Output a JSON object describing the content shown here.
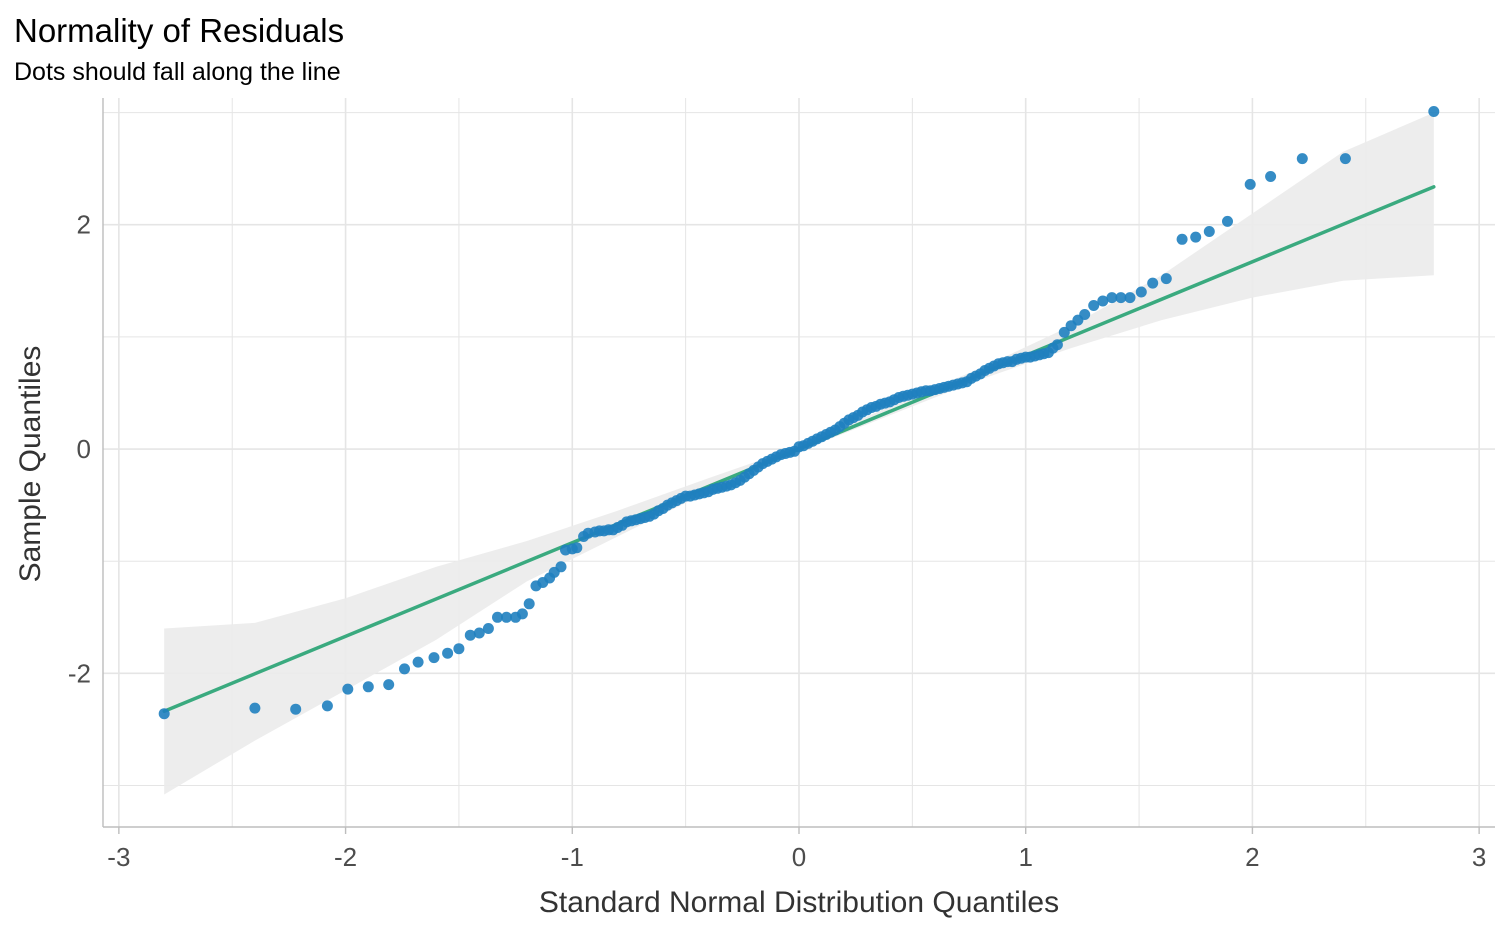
{
  "chart_data": {
    "type": "scatter",
    "title": "Normality of Residuals",
    "subtitle": "Dots should fall along the line",
    "xlabel": "Standard Normal Distribution Quantiles",
    "ylabel": "Sample Quantiles",
    "xlim": [
      -3.07,
      3.07
    ],
    "ylim": [
      -3.37,
      3.13
    ],
    "x_ticks": [
      -3,
      -2,
      -1,
      0,
      1,
      2,
      3
    ],
    "x_tick_labels": [
      "-3",
      "-2",
      "-1",
      "0",
      "1",
      "2",
      "3"
    ],
    "y_ticks": [
      -2,
      0,
      2
    ],
    "y_tick_labels": [
      "-2",
      "0",
      "2"
    ],
    "grid": true,
    "colors": {
      "points": "#1f7fbf",
      "line": "#3aaa7f",
      "band": "#ebebeb",
      "grid": "#e5e5e5",
      "axis": "#bdbdbd"
    },
    "reference_line": {
      "slope": 0.835,
      "intercept": 0.0,
      "x_range": [
        -2.8,
        2.8
      ]
    },
    "confidence_band": {
      "x": [
        -2.8,
        -2.4,
        -2.0,
        -1.6,
        -1.2,
        -0.8,
        -0.4,
        0.0,
        0.4,
        0.8,
        1.2,
        1.6,
        2.0,
        2.4,
        2.8
      ],
      "lower": [
        -3.08,
        -2.6,
        -2.15,
        -1.7,
        -1.18,
        -0.78,
        -0.38,
        -0.02,
        0.3,
        0.62,
        0.9,
        1.15,
        1.35,
        1.5,
        1.55
      ],
      "upper": [
        -1.6,
        -1.55,
        -1.33,
        -1.05,
        -0.82,
        -0.55,
        -0.26,
        0.02,
        0.38,
        0.72,
        1.1,
        1.55,
        2.1,
        2.65,
        3.0
      ]
    },
    "series": [
      {
        "points": [
          [
            -2.8,
            -2.36
          ],
          [
            -2.4,
            -2.31
          ],
          [
            -2.22,
            -2.32
          ],
          [
            -2.08,
            -2.29
          ],
          [
            -1.99,
            -2.14
          ],
          [
            -1.9,
            -2.12
          ],
          [
            -1.81,
            -2.1
          ],
          [
            -1.74,
            -1.96
          ],
          [
            -1.68,
            -1.9
          ],
          [
            -1.61,
            -1.86
          ],
          [
            -1.55,
            -1.82
          ],
          [
            -1.5,
            -1.78
          ],
          [
            -1.45,
            -1.66
          ],
          [
            -1.41,
            -1.64
          ],
          [
            -1.37,
            -1.6
          ],
          [
            -1.33,
            -1.5
          ],
          [
            -1.29,
            -1.5
          ],
          [
            -1.25,
            -1.5
          ],
          [
            -1.22,
            -1.47
          ],
          [
            -1.19,
            -1.38
          ],
          [
            -1.16,
            -1.22
          ],
          [
            -1.13,
            -1.19
          ],
          [
            -1.1,
            -1.15
          ],
          [
            -1.08,
            -1.1
          ],
          [
            -1.05,
            -1.05
          ],
          [
            -1.03,
            -0.9
          ],
          [
            -1.0,
            -0.89
          ],
          [
            -0.98,
            -0.88
          ],
          [
            -0.95,
            -0.78
          ],
          [
            -0.93,
            -0.75
          ],
          [
            -0.9,
            -0.74
          ],
          [
            -0.88,
            -0.73
          ],
          [
            -0.86,
            -0.73
          ],
          [
            -0.84,
            -0.72
          ],
          [
            -0.82,
            -0.72
          ],
          [
            -0.8,
            -0.7
          ],
          [
            -0.78,
            -0.68
          ],
          [
            -0.76,
            -0.65
          ],
          [
            -0.74,
            -0.64
          ],
          [
            -0.72,
            -0.63
          ],
          [
            -0.7,
            -0.62
          ],
          [
            -0.68,
            -0.61
          ],
          [
            -0.66,
            -0.6
          ],
          [
            -0.64,
            -0.58
          ],
          [
            -0.62,
            -0.55
          ],
          [
            -0.6,
            -0.53
          ],
          [
            -0.58,
            -0.5
          ],
          [
            -0.56,
            -0.48
          ],
          [
            -0.54,
            -0.46
          ],
          [
            -0.52,
            -0.44
          ],
          [
            -0.5,
            -0.42
          ],
          [
            -0.48,
            -0.42
          ],
          [
            -0.46,
            -0.41
          ],
          [
            -0.44,
            -0.4
          ],
          [
            -0.42,
            -0.39
          ],
          [
            -0.4,
            -0.38
          ],
          [
            -0.38,
            -0.36
          ],
          [
            -0.36,
            -0.35
          ],
          [
            -0.34,
            -0.34
          ],
          [
            -0.32,
            -0.33
          ],
          [
            -0.3,
            -0.32
          ],
          [
            -0.28,
            -0.3
          ],
          [
            -0.26,
            -0.28
          ],
          [
            -0.24,
            -0.25
          ],
          [
            -0.22,
            -0.22
          ],
          [
            -0.2,
            -0.19
          ],
          [
            -0.18,
            -0.16
          ],
          [
            -0.16,
            -0.13
          ],
          [
            -0.14,
            -0.11
          ],
          [
            -0.12,
            -0.09
          ],
          [
            -0.1,
            -0.07
          ],
          [
            -0.08,
            -0.05
          ],
          [
            -0.06,
            -0.04
          ],
          [
            -0.04,
            -0.03
          ],
          [
            -0.02,
            -0.02
          ],
          [
            0.0,
            0.02
          ],
          [
            0.02,
            0.03
          ],
          [
            0.04,
            0.05
          ],
          [
            0.06,
            0.07
          ],
          [
            0.08,
            0.09
          ],
          [
            0.1,
            0.11
          ],
          [
            0.12,
            0.13
          ],
          [
            0.14,
            0.15
          ],
          [
            0.16,
            0.17
          ],
          [
            0.18,
            0.2
          ],
          [
            0.2,
            0.23
          ],
          [
            0.22,
            0.26
          ],
          [
            0.24,
            0.28
          ],
          [
            0.26,
            0.3
          ],
          [
            0.28,
            0.33
          ],
          [
            0.3,
            0.35
          ],
          [
            0.32,
            0.37
          ],
          [
            0.34,
            0.38
          ],
          [
            0.36,
            0.4
          ],
          [
            0.38,
            0.41
          ],
          [
            0.4,
            0.42
          ],
          [
            0.42,
            0.44
          ],
          [
            0.44,
            0.46
          ],
          [
            0.46,
            0.47
          ],
          [
            0.48,
            0.48
          ],
          [
            0.5,
            0.49
          ],
          [
            0.52,
            0.5
          ],
          [
            0.54,
            0.51
          ],
          [
            0.56,
            0.52
          ],
          [
            0.58,
            0.52
          ],
          [
            0.6,
            0.53
          ],
          [
            0.62,
            0.54
          ],
          [
            0.64,
            0.55
          ],
          [
            0.66,
            0.56
          ],
          [
            0.68,
            0.57
          ],
          [
            0.7,
            0.58
          ],
          [
            0.72,
            0.59
          ],
          [
            0.74,
            0.6
          ],
          [
            0.76,
            0.63
          ],
          [
            0.78,
            0.65
          ],
          [
            0.8,
            0.67
          ],
          [
            0.82,
            0.7
          ],
          [
            0.84,
            0.72
          ],
          [
            0.86,
            0.74
          ],
          [
            0.88,
            0.76
          ],
          [
            0.9,
            0.77
          ],
          [
            0.92,
            0.78
          ],
          [
            0.94,
            0.78
          ],
          [
            0.96,
            0.8
          ],
          [
            0.98,
            0.81
          ],
          [
            1.0,
            0.82
          ],
          [
            1.02,
            0.82
          ],
          [
            1.04,
            0.83
          ],
          [
            1.06,
            0.84
          ],
          [
            1.08,
            0.85
          ],
          [
            1.1,
            0.86
          ],
          [
            1.12,
            0.9
          ],
          [
            1.14,
            0.93
          ],
          [
            1.17,
            1.04
          ],
          [
            1.2,
            1.1
          ],
          [
            1.23,
            1.15
          ],
          [
            1.26,
            1.2
          ],
          [
            1.3,
            1.28
          ],
          [
            1.34,
            1.32
          ],
          [
            1.38,
            1.35
          ],
          [
            1.42,
            1.35
          ],
          [
            1.46,
            1.35
          ],
          [
            1.51,
            1.4
          ],
          [
            1.56,
            1.48
          ],
          [
            1.62,
            1.52
          ],
          [
            1.69,
            1.87
          ],
          [
            1.75,
            1.89
          ],
          [
            1.81,
            1.94
          ],
          [
            1.89,
            2.03
          ],
          [
            1.99,
            2.36
          ],
          [
            2.08,
            2.43
          ],
          [
            2.22,
            2.59
          ],
          [
            2.41,
            2.59
          ],
          [
            2.8,
            3.01
          ]
        ]
      }
    ]
  }
}
